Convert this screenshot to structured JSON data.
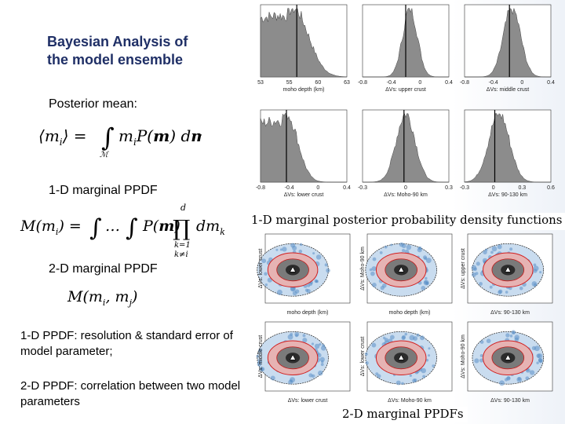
{
  "slide": {
    "title_line1": "Bayesian Analysis of",
    "title_line2": "the model ensemble",
    "posterior_mean_label": "Posterior mean:",
    "marginal_1d_label": "1-D marginal PPDF",
    "marginal_2d_label": "2-D marginal PPDF",
    "note_1d": "1-D PPDF: resolution & standard error of model parameter;",
    "note_2d": " 2-D PPDF: correlation between two model parameters"
  },
  "equations": {
    "posterior_mean": "⟨mᵢ⟩ = ∫ mᵢ P(m) dm",
    "posterior_mean_domain": "ℳ",
    "marginal_1d": "M(mᵢ) = ∫ … ∫ P(m) ∏ dmₖ",
    "marginal_1d_upper": "d",
    "marginal_1d_lower": "k=1, k≠i",
    "marginal_2d": "M(mᵢ, mⱼ)"
  },
  "figure": {
    "caption_1d": "1-D marginal posterior probability density functions (PPDFs)",
    "caption_2d": "2-D marginal PPDFs",
    "histograms": [
      {
        "xlabel": "moho depth (km)",
        "ticks": [
          "53",
          "55",
          "60",
          "63"
        ]
      },
      {
        "xlabel": "ΔVs: upper crust",
        "ticks": [
          "-0.8",
          "-0.4",
          "0",
          "0.4"
        ]
      },
      {
        "xlabel": "ΔVs: middle crust",
        "ticks": [
          "-0.8",
          "-0.4",
          "0",
          "0.4"
        ]
      },
      {
        "xlabel": "ΔVs: lower crust",
        "ticks": [
          "-0.8",
          "-0.4",
          "0",
          "0.4"
        ]
      },
      {
        "xlabel": "ΔVs: Moho-90 km",
        "ticks": [
          "-0.3",
          "0",
          "0.3"
        ]
      },
      {
        "xlabel": "ΔVs: 90-130 km",
        "ticks": [
          "-0.3",
          "0",
          "0.3",
          "0.6"
        ]
      }
    ],
    "scatter_panels": [
      {
        "xlabel": "moho depth (km)",
        "ylabel": "ΔVs: lower crust"
      },
      {
        "xlabel": "moho depth (km)",
        "ylabel": "ΔVs: Moho-90 km"
      },
      {
        "xlabel": "ΔVs: 90-130 km",
        "ylabel": "ΔVs: upper crust"
      },
      {
        "xlabel": "ΔVs: lower crust",
        "ylabel": "ΔVs: middle crust"
      },
      {
        "xlabel": "ΔVs: Moho-90 km",
        "ylabel": "ΔVs: lower crust"
      },
      {
        "xlabel": "ΔVs: 90-130 km",
        "ylabel": "ΔVs: Moho-90 km"
      }
    ]
  }
}
